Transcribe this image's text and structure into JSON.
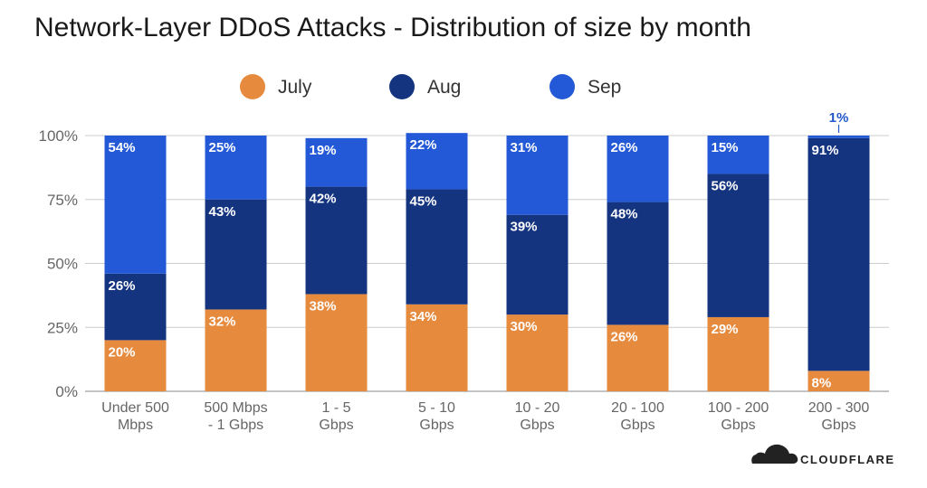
{
  "title": "Network-Layer DDoS Attacks - Distribution of size by month",
  "brand": "CLOUDFLARE",
  "colors": {
    "July": "#e68a3e",
    "Aug": "#143480",
    "Sep": "#2359d6",
    "grid": "#cccccc",
    "axis": "#888888"
  },
  "chart_data": {
    "type": "bar",
    "stacked": true,
    "title": "Network-Layer DDoS Attacks - Distribution of size by month",
    "xlabel": "",
    "ylabel": "",
    "ylim": [
      0,
      100
    ],
    "y_ticks": [
      "0%",
      "25%",
      "50%",
      "75%",
      "100%"
    ],
    "y_tick_values": [
      0,
      25,
      50,
      75,
      100
    ],
    "grid": true,
    "legend_position": "top",
    "categories": [
      [
        "Under 500",
        "Mbps"
      ],
      [
        "500 Mbps",
        "- 1 Gbps"
      ],
      [
        "1 - 5",
        "Gbps"
      ],
      [
        "5 - 10",
        "Gbps"
      ],
      [
        "10 - 20",
        "Gbps"
      ],
      [
        "20 - 100",
        "Gbps"
      ],
      [
        "100 - 200",
        "Gbps"
      ],
      [
        "200 - 300",
        "Gbps"
      ]
    ],
    "series": [
      {
        "name": "July",
        "values": [
          20,
          32,
          38,
          34,
          30,
          26,
          29,
          8
        ],
        "labels": [
          "20%",
          "32%",
          "38%",
          "34%",
          "30%",
          "26%",
          "29%",
          "8%"
        ]
      },
      {
        "name": "Aug",
        "values": [
          26,
          43,
          42,
          45,
          39,
          48,
          56,
          91
        ],
        "labels": [
          "26%",
          "43%",
          "42%",
          "45%",
          "39%",
          "48%",
          "56%",
          "91%"
        ]
      },
      {
        "name": "Sep",
        "values": [
          54,
          25,
          19,
          22,
          31,
          26,
          15,
          1
        ],
        "labels": [
          "54%",
          "25%",
          "19%",
          "22%",
          "31%",
          "26%",
          "15%",
          "1%"
        ]
      }
    ]
  }
}
